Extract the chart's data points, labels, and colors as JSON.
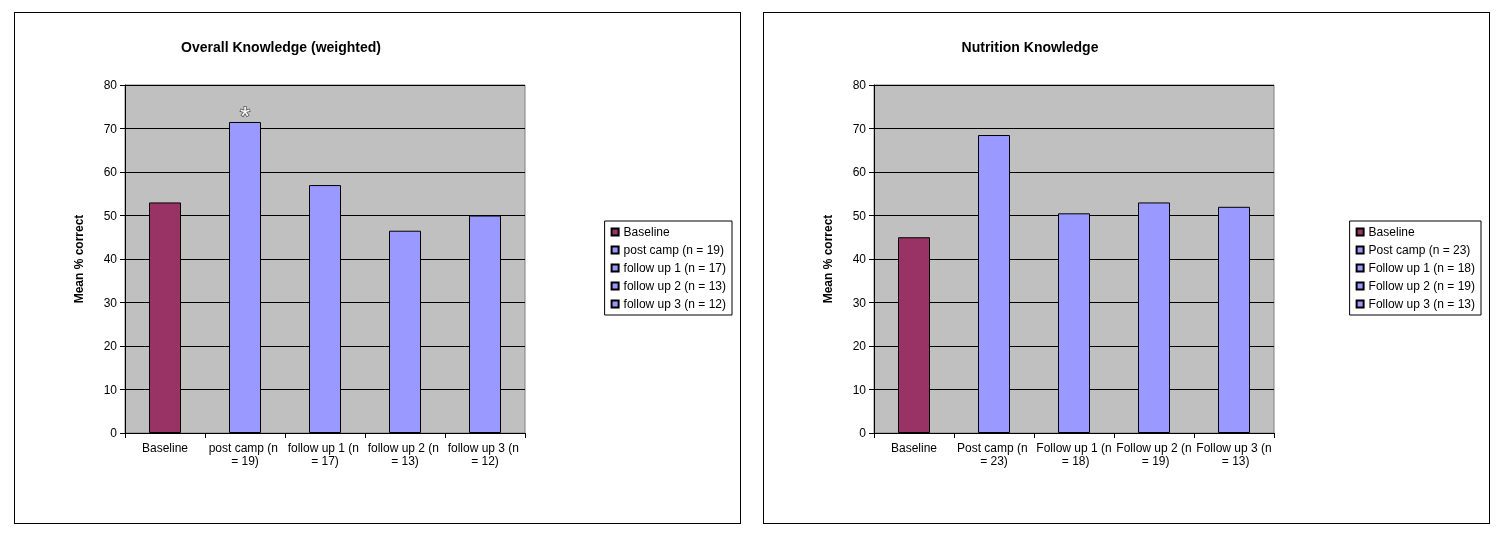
{
  "chart_data": [
    {
      "type": "bar",
      "title": "Overall Knowledge (weighted)",
      "ylabel": "Mean % correct",
      "categories": [
        "Baseline",
        "post camp (n = 19)",
        "follow up 1 (n = 17)",
        "follow up 2 (n = 13)",
        "follow up 3 (n = 12)"
      ],
      "series": [
        {
          "name": "Baseline",
          "color": "#993366",
          "values": [
            53,
            null,
            null,
            null,
            null
          ]
        },
        {
          "name": "post camp (n = 19)",
          "color": "#9999ff",
          "values": [
            null,
            71.5,
            null,
            null,
            null
          ]
        },
        {
          "name": "follow up 1 (n = 17)",
          "color": "#9999ff",
          "values": [
            null,
            null,
            57,
            null,
            null
          ]
        },
        {
          "name": "follow up 2 (n = 13)",
          "color": "#9999ff",
          "values": [
            null,
            null,
            null,
            46.5,
            null
          ]
        },
        {
          "name": "follow up 3 (n = 12)",
          "color": "#9999ff",
          "values": [
            null,
            null,
            null,
            null,
            50
          ]
        }
      ],
      "ylim": [
        0,
        80
      ],
      "yticks": [
        0,
        10,
        20,
        30,
        40,
        50,
        60,
        70,
        80
      ],
      "grid": "y",
      "legend": "right",
      "annotations": [
        {
          "text": "*",
          "x": "post camp (n = 19)",
          "y": 71.5
        }
      ]
    },
    {
      "type": "bar",
      "title": "Nutrition Knowledge",
      "ylabel": "Mean % correct",
      "categories": [
        "Baseline",
        "Post camp (n = 23)",
        "Follow up 1 (n = 18)",
        "Follow up 2 (n = 19)",
        "Follow up 3 (n = 13)"
      ],
      "series": [
        {
          "name": "Baseline",
          "color": "#993366",
          "values": [
            45,
            null,
            null,
            null,
            null
          ]
        },
        {
          "name": "Post camp (n = 23)",
          "color": "#9999ff",
          "values": [
            null,
            68.5,
            null,
            null,
            null
          ]
        },
        {
          "name": "Follow up 1 (n = 18)",
          "color": "#9999ff",
          "values": [
            null,
            null,
            50.5,
            null,
            null
          ]
        },
        {
          "name": "Follow up 2 (n = 19)",
          "color": "#9999ff",
          "values": [
            null,
            null,
            null,
            53,
            null
          ]
        },
        {
          "name": "Follow up 3 (n = 13)",
          "color": "#9999ff",
          "values": [
            null,
            null,
            null,
            null,
            52
          ]
        }
      ],
      "ylim": [
        0,
        80
      ],
      "yticks": [
        0,
        10,
        20,
        30,
        40,
        50,
        60,
        70,
        80
      ],
      "grid": "y",
      "legend": "right"
    }
  ]
}
